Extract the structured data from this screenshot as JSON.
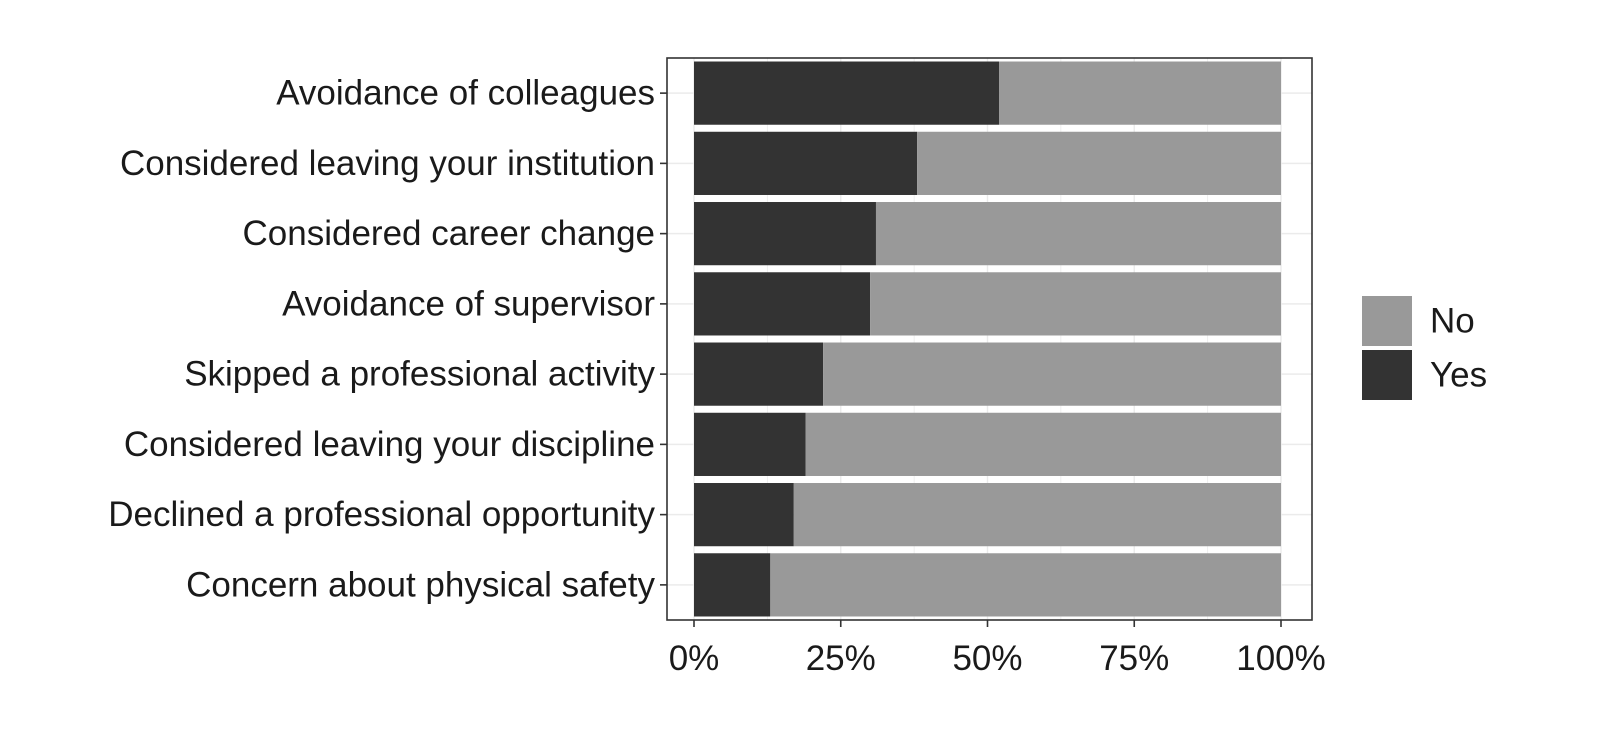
{
  "chart_data": {
    "type": "bar",
    "orientation": "horizontal",
    "stacked": true,
    "percent": true,
    "categories": [
      "Avoidance of colleagues",
      "Considered leaving your institution",
      "Considered career change",
      "Avoidance of supervisor",
      "Skipped a professional activity",
      "Considered leaving your discipline",
      "Declined a professional opportunity",
      "Concern about physical safety"
    ],
    "series": [
      {
        "name": "Yes",
        "color": "#333333",
        "values": [
          52,
          38,
          31,
          30,
          22,
          19,
          17,
          13
        ]
      },
      {
        "name": "No",
        "color": "#999999",
        "values": [
          48,
          62,
          69,
          70,
          78,
          81,
          83,
          87
        ]
      }
    ],
    "xticks": [
      "0%",
      "25%",
      "50%",
      "75%",
      "100%"
    ],
    "xlim": [
      0,
      100
    ],
    "title": "",
    "xlabel": "",
    "ylabel": "",
    "grid": true,
    "legend": {
      "position": "right",
      "entries": [
        {
          "label": "No",
          "color": "#999999"
        },
        {
          "label": "Yes",
          "color": "#333333"
        }
      ]
    }
  }
}
